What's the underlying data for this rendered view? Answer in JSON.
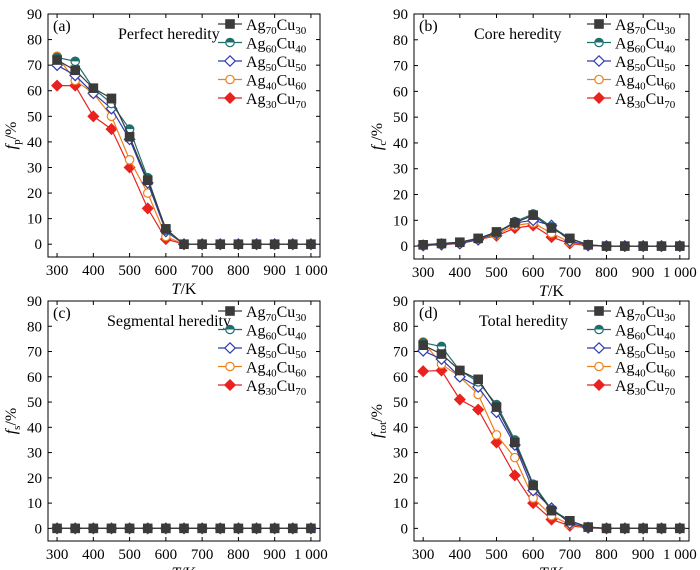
{
  "chart_data": [
    {
      "type": "line",
      "panel_label": "(a)",
      "title": "Perfect heredity",
      "ylabel": {
        "main": "f",
        "sub": "p",
        "unit": "/%"
      },
      "xlabel": {
        "main": "T",
        "unit": "/K"
      },
      "xlim": [
        275,
        1025
      ],
      "ylim": [
        -5,
        90
      ],
      "xticks": [
        300,
        400,
        500,
        600,
        700,
        800,
        900,
        1000
      ],
      "xtick_labels": [
        "300",
        "400",
        "500",
        "600",
        "700",
        "800",
        "900",
        "1 000"
      ],
      "yticks": [
        0,
        10,
        20,
        30,
        40,
        50,
        60,
        70,
        80,
        90
      ],
      "ytick_labels": [
        "0",
        "10",
        "20",
        "30",
        "40",
        "50",
        "60",
        "70",
        "80",
        "90"
      ],
      "x": [
        300,
        350,
        400,
        450,
        500,
        550,
        600,
        650,
        700,
        750,
        800,
        850,
        900,
        950,
        1000
      ],
      "series": [
        {
          "name": "Ag70Cu30",
          "values": [
            72,
            68,
            61,
            57,
            42,
            25,
            6,
            0,
            0,
            0,
            0,
            0,
            0,
            0,
            0
          ]
        },
        {
          "name": "Ag60Cu40",
          "values": [
            73,
            71.5,
            61,
            55,
            45,
            26,
            5.5,
            0,
            0,
            0,
            0,
            0,
            0,
            0,
            0
          ]
        },
        {
          "name": "Ag50Cu50",
          "values": [
            70,
            66,
            59,
            53,
            41,
            24,
            5,
            0,
            0,
            0,
            0,
            0,
            0,
            0,
            0
          ]
        },
        {
          "name": "Ag40Cu60",
          "values": [
            73.5,
            64,
            59,
            50,
            33,
            20,
            3,
            0,
            0,
            0,
            0,
            0,
            0,
            0,
            0
          ]
        },
        {
          "name": "Ag30Cu70",
          "values": [
            62,
            62,
            50,
            45,
            30,
            14,
            2,
            0,
            0,
            0,
            0,
            0,
            0,
            0,
            0
          ]
        }
      ]
    },
    {
      "type": "line",
      "panel_label": "(b)",
      "title": "Core heredity",
      "ylabel": {
        "main": "f",
        "sub": "c",
        "unit": "/%"
      },
      "xlabel": {
        "main": "T",
        "unit": "/K"
      },
      "xlim": [
        275,
        1025
      ],
      "ylim": [
        -5,
        90
      ],
      "xticks": [
        300,
        400,
        500,
        600,
        700,
        800,
        900,
        1000
      ],
      "xtick_labels": [
        "300",
        "400",
        "500",
        "600",
        "700",
        "800",
        "900",
        "1 000"
      ],
      "yticks": [
        0,
        10,
        20,
        30,
        40,
        50,
        60,
        70,
        80,
        90
      ],
      "ytick_labels": [
        "0",
        "10",
        "20",
        "30",
        "40",
        "50",
        "60",
        "70",
        "80",
        "90"
      ],
      "x": [
        300,
        350,
        400,
        450,
        500,
        550,
        600,
        650,
        700,
        750,
        800,
        850,
        900,
        950,
        1000
      ],
      "series": [
        {
          "name": "Ag70Cu30",
          "values": [
            0.5,
            1,
            1.5,
            3,
            5.5,
            9,
            12,
            7,
            3,
            0.5,
            0,
            0,
            0,
            0,
            0
          ]
        },
        {
          "name": "Ag60Cu40",
          "values": [
            0.5,
            1,
            1.5,
            3,
            5,
            9.5,
            12.5,
            7.5,
            3,
            0.5,
            0,
            0,
            0,
            0,
            0
          ]
        },
        {
          "name": "Ag50Cu50",
          "values": [
            0.3,
            0.8,
            1,
            2.5,
            5,
            9,
            10,
            8,
            2,
            0.3,
            0,
            0,
            0,
            0,
            0
          ]
        },
        {
          "name": "Ag40Cu60",
          "values": [
            0.3,
            0.8,
            1,
            2.5,
            4.5,
            8,
            9,
            5,
            1.5,
            0.3,
            0,
            0,
            0,
            0,
            0
          ]
        },
        {
          "name": "Ag30Cu70",
          "values": [
            0.2,
            0.5,
            1,
            2.5,
            4,
            7,
            8,
            3.5,
            1,
            0.2,
            0,
            0,
            0,
            0,
            0
          ]
        }
      ]
    },
    {
      "type": "line",
      "panel_label": "(c)",
      "title": "Segmental heredity",
      "ylabel": {
        "main": "f",
        "sub": "s",
        "unit": "/%"
      },
      "xlabel": {
        "main": "T",
        "unit": "/K"
      },
      "xlim": [
        275,
        1025
      ],
      "ylim": [
        -5,
        90
      ],
      "xticks": [
        300,
        400,
        500,
        600,
        700,
        800,
        900,
        1000
      ],
      "xtick_labels": [
        "300",
        "400",
        "500",
        "600",
        "700",
        "800",
        "900",
        "1 000"
      ],
      "yticks": [
        0,
        10,
        20,
        30,
        40,
        50,
        60,
        70,
        80,
        90
      ],
      "ytick_labels": [
        "0",
        "10",
        "20",
        "30",
        "40",
        "50",
        "60",
        "70",
        "80",
        "90"
      ],
      "x": [
        300,
        350,
        400,
        450,
        500,
        550,
        600,
        650,
        700,
        750,
        800,
        850,
        900,
        950,
        1000
      ],
      "series": [
        {
          "name": "Ag70Cu30",
          "values": [
            0,
            0,
            0,
            0,
            0,
            0,
            0,
            0,
            0,
            0,
            0,
            0,
            0,
            0,
            0
          ]
        },
        {
          "name": "Ag60Cu40",
          "values": [
            0,
            0,
            0,
            0,
            0,
            0,
            0,
            0,
            0,
            0,
            0,
            0,
            0,
            0,
            0
          ]
        },
        {
          "name": "Ag50Cu50",
          "values": [
            0,
            0,
            0,
            0,
            0,
            0,
            0,
            0,
            0,
            0,
            0,
            0,
            0,
            0,
            0
          ]
        },
        {
          "name": "Ag40Cu60",
          "values": [
            0,
            0,
            0,
            0,
            0,
            0,
            0,
            0,
            0,
            0,
            0,
            0,
            0,
            0,
            0
          ]
        },
        {
          "name": "Ag30Cu70",
          "values": [
            0,
            0,
            0,
            0,
            0,
            0,
            0,
            0,
            0,
            0,
            0,
            0,
            0,
            0,
            0
          ]
        }
      ]
    },
    {
      "type": "line",
      "panel_label": "(d)",
      "title": "Total heredity",
      "ylabel": {
        "main": "f",
        "sub": "tot",
        "unit": "/%"
      },
      "xlabel": {
        "main": "T",
        "unit": "/K"
      },
      "xlim": [
        275,
        1025
      ],
      "ylim": [
        -5,
        90
      ],
      "xticks": [
        300,
        400,
        500,
        600,
        700,
        800,
        900,
        1000
      ],
      "xtick_labels": [
        "300",
        "400",
        "500",
        "600",
        "700",
        "800",
        "900",
        "1 000"
      ],
      "yticks": [
        0,
        10,
        20,
        30,
        40,
        50,
        60,
        70,
        80,
        90
      ],
      "ytick_labels": [
        "0",
        "10",
        "20",
        "30",
        "40",
        "50",
        "60",
        "70",
        "80",
        "90"
      ],
      "x": [
        300,
        350,
        400,
        450,
        500,
        550,
        600,
        650,
        700,
        750,
        800,
        850,
        900,
        950,
        1000
      ],
      "series": [
        {
          "name": "Ag70Cu30",
          "values": [
            72.5,
            69,
            62.5,
            59,
            48,
            34,
            17,
            7,
            3,
            0.5,
            0,
            0,
            0,
            0,
            0
          ]
        },
        {
          "name": "Ag60Cu40",
          "values": [
            73.5,
            72,
            62.5,
            58,
            49,
            35,
            17.5,
            7.5,
            3,
            0.5,
            0,
            0,
            0,
            0,
            0
          ]
        },
        {
          "name": "Ag50Cu50",
          "values": [
            70.3,
            67,
            60,
            56,
            46,
            33,
            15,
            8,
            2,
            0.3,
            0,
            0,
            0,
            0,
            0
          ]
        },
        {
          "name": "Ag40Cu60",
          "values": [
            73.8,
            65,
            60,
            53,
            37,
            28,
            12,
            5,
            1.5,
            0.3,
            0,
            0,
            0,
            0,
            0
          ]
        },
        {
          "name": "Ag30Cu70",
          "values": [
            62.2,
            62.5,
            51,
            47,
            34,
            21,
            10,
            3.5,
            1,
            0.2,
            0,
            0,
            0,
            0,
            0
          ]
        }
      ]
    }
  ],
  "legend": [
    {
      "el": "Ag",
      "n1": "70",
      "el2": "Cu",
      "n2": "30",
      "color": "#3b3b3b",
      "marker": "square",
      "fill": true
    },
    {
      "el": "Ag",
      "n1": "60",
      "el2": "Cu",
      "n2": "40",
      "color": "#1f6e6e",
      "marker": "circle",
      "fill": "half"
    },
    {
      "el": "Ag",
      "n1": "50",
      "el2": "Cu",
      "n2": "50",
      "color": "#2e3bb0",
      "marker": "diamond",
      "fill": false
    },
    {
      "el": "Ag",
      "n1": "40",
      "el2": "Cu",
      "n2": "60",
      "color": "#f07f1a",
      "marker": "circle",
      "fill": false
    },
    {
      "el": "Ag",
      "n1": "30",
      "el2": "Cu",
      "n2": "70",
      "color": "#e8221f",
      "marker": "diamond",
      "fill": true
    }
  ]
}
